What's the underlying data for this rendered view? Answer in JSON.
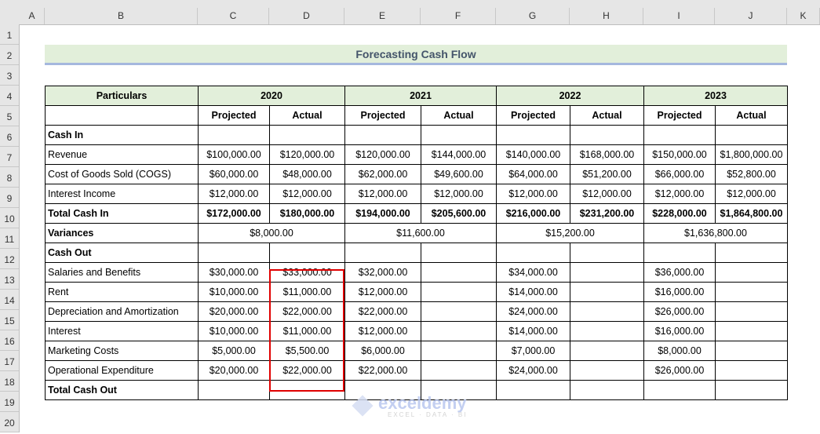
{
  "columns": [
    "A",
    "B",
    "C",
    "D",
    "E",
    "F",
    "G",
    "H",
    "I",
    "J",
    "K"
  ],
  "rows": [
    "1",
    "2",
    "3",
    "4",
    "5",
    "6",
    "7",
    "8",
    "9",
    "10",
    "11",
    "12",
    "13",
    "14",
    "15",
    "16",
    "17",
    "18",
    "19",
    "20"
  ],
  "title": "Forecasting Cash Flow",
  "colors": {
    "header_fill": "#e2efda",
    "title_underline": "#a5b8de",
    "highlight_border": "#e00000",
    "title_text": "#44546a"
  },
  "table": {
    "header_years": {
      "particulars": "Particulars",
      "years": [
        "2020",
        "2021",
        "2022",
        "2023"
      ]
    },
    "subheaders": [
      "Projected",
      "Actual",
      "Projected",
      "Actual",
      "Projected",
      "Actual",
      "Projected",
      "Actual"
    ],
    "body": [
      {
        "label": "Cash In",
        "bold": true,
        "cells": [
          "",
          "",
          "",
          "",
          "",
          "",
          "",
          ""
        ]
      },
      {
        "label": "Revenue",
        "cells": [
          "$100,000.00",
          "$120,000.00",
          "$120,000.00",
          "$144,000.00",
          "$140,000.00",
          "$168,000.00",
          "$150,000.00",
          "$1,800,000.00"
        ]
      },
      {
        "label": "Cost of Goods Sold (COGS)",
        "cells": [
          "$60,000.00",
          "$48,000.00",
          "$62,000.00",
          "$49,600.00",
          "$64,000.00",
          "$51,200.00",
          "$66,000.00",
          "$52,800.00"
        ]
      },
      {
        "label": "Interest Income",
        "cells": [
          "$12,000.00",
          "$12,000.00",
          "$12,000.00",
          "$12,000.00",
          "$12,000.00",
          "$12,000.00",
          "$12,000.00",
          "$12,000.00"
        ]
      },
      {
        "label": "Total Cash In",
        "bold": true,
        "cells": [
          "$172,000.00",
          "$180,000.00",
          "$194,000.00",
          "$205,600.00",
          "$216,000.00",
          "$231,200.00",
          "$228,000.00",
          "$1,864,800.00"
        ]
      },
      {
        "label": "Variances",
        "bold": true,
        "merged": true,
        "cells": [
          "$8,000.00",
          "$11,600.00",
          "$15,200.00",
          "$1,636,800.00"
        ]
      },
      {
        "label": "Cash Out",
        "bold": true,
        "cells": [
          "",
          "",
          "",
          "",
          "",
          "",
          "",
          ""
        ]
      },
      {
        "label": "Salaries and Benefits",
        "cells": [
          "$30,000.00",
          "$33,000.00",
          "$32,000.00",
          "",
          "$34,000.00",
          "",
          "$36,000.00",
          ""
        ]
      },
      {
        "label": "Rent",
        "cells": [
          "$10,000.00",
          "$11,000.00",
          "$12,000.00",
          "",
          "$14,000.00",
          "",
          "$16,000.00",
          ""
        ]
      },
      {
        "label": "Depreciation and Amortization",
        "cells": [
          "$20,000.00",
          "$22,000.00",
          "$22,000.00",
          "",
          "$24,000.00",
          "",
          "$26,000.00",
          ""
        ]
      },
      {
        "label": "Interest",
        "cells": [
          "$10,000.00",
          "$11,000.00",
          "$12,000.00",
          "",
          "$14,000.00",
          "",
          "$16,000.00",
          ""
        ]
      },
      {
        "label": "Marketing Costs",
        "cells": [
          "$5,000.00",
          "$5,500.00",
          "$6,000.00",
          "",
          "$7,000.00",
          "",
          "$8,000.00",
          ""
        ]
      },
      {
        "label": "Operational Expenditure",
        "cells": [
          "$20,000.00",
          "$22,000.00",
          "$22,000.00",
          "",
          "$24,000.00",
          "",
          "$26,000.00",
          ""
        ]
      },
      {
        "label": "Total Cash Out",
        "bold": true,
        "cells": [
          "",
          "",
          "",
          "",
          "",
          "",
          "",
          ""
        ]
      }
    ]
  },
  "watermark": {
    "brand": "exceldemy",
    "tagline": "EXCEL · DATA · BI"
  }
}
